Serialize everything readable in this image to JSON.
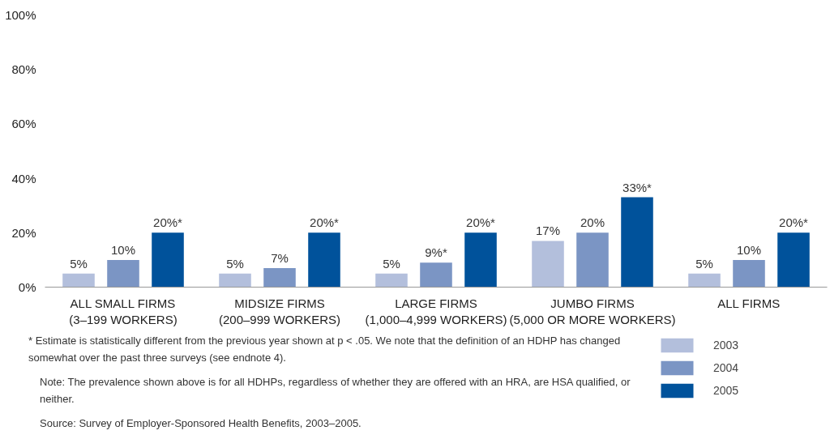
{
  "chart_data": {
    "type": "bar",
    "categories": [
      "ALL SMALL FIRMS (3–199 WORKERS)",
      "MIDSIZE FIRMS (200–999 WORKERS)",
      "LARGE FIRMS (1,000–4,999 WORKERS)",
      "JUMBO FIRMS (5,000 OR MORE WORKERS)",
      "ALL FIRMS"
    ],
    "series": [
      {
        "name": "2003",
        "color": "#b3bfdc",
        "values": [
          5,
          5,
          5,
          17,
          5
        ],
        "value_labels": [
          "5%",
          "5%",
          "5%",
          "17%",
          "5%"
        ]
      },
      {
        "name": "2004",
        "color": "#7b95c4",
        "values": [
          10,
          7,
          9,
          20,
          10
        ],
        "value_labels": [
          "10%",
          "7%",
          "9%*",
          "20%",
          "10%"
        ]
      },
      {
        "name": "2005",
        "color": "#00529b",
        "values": [
          20,
          20,
          20,
          33,
          20
        ],
        "value_labels": [
          "20%*",
          "20%*",
          "20%*",
          "33%*",
          "20%*"
        ]
      }
    ],
    "ylim": [
      0,
      100
    ],
    "yticks": [
      {
        "value": 0,
        "label": "0%"
      },
      {
        "value": 20,
        "label": "20%"
      },
      {
        "value": 40,
        "label": "40%"
      },
      {
        "value": 60,
        "label": "60%"
      },
      {
        "value": 80,
        "label": "80%"
      },
      {
        "value": 100,
        "label": "100%"
      }
    ],
    "grid": false,
    "legend": "bottom right",
    "annotations": [
      "* Estimate is statistically different from the previous year shown at p < .05. We note that the definition of an HDHP has changed somewhat over the past three surveys (see endnote 4).",
      "Note: The prevalence shown above is for all HDHPs, regardless of whether they are offered with an HRA, are HSA qualified, or neither.",
      "Source: Survey of Employer-Sponsored Health Benefits, 2003–2005."
    ]
  }
}
